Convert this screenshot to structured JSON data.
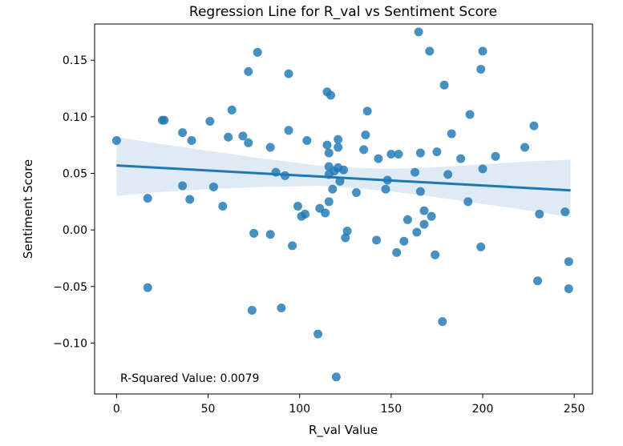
{
  "chart_data": {
    "type": "scatter",
    "title": "Regression Line for R_val vs Sentiment Score",
    "xlabel": "R_val Value",
    "ylabel": "Sentiment Score",
    "xlim": [
      -12,
      260
    ],
    "ylim": [
      -0.145,
      0.182
    ],
    "x_ticks": [
      0,
      50,
      100,
      150,
      200,
      250
    ],
    "y_ticks": [
      -0.1,
      -0.05,
      0.0,
      0.05,
      0.1,
      0.15
    ],
    "x_tick_labels": [
      "0",
      "50",
      "100",
      "150",
      "200",
      "250"
    ],
    "y_tick_labels": [
      "−0.10",
      "−0.05",
      "0.00",
      "0.05",
      "0.10",
      "0.15"
    ],
    "annotation": "R-Squared Value: 0.0079",
    "grid": false,
    "colors": {
      "points": "#1f77b4",
      "line": "#1f77b4",
      "band": "#1f77b4"
    },
    "points": [
      {
        "x": 0,
        "y": 0.079
      },
      {
        "x": 17,
        "y": 0.028
      },
      {
        "x": 17,
        "y": -0.051
      },
      {
        "x": 25,
        "y": 0.097
      },
      {
        "x": 26,
        "y": 0.097
      },
      {
        "x": 36,
        "y": 0.086
      },
      {
        "x": 36,
        "y": 0.039
      },
      {
        "x": 40,
        "y": 0.027
      },
      {
        "x": 41,
        "y": 0.079
      },
      {
        "x": 51,
        "y": 0.096
      },
      {
        "x": 53,
        "y": 0.038
      },
      {
        "x": 58,
        "y": 0.021
      },
      {
        "x": 61,
        "y": 0.082
      },
      {
        "x": 63,
        "y": 0.106
      },
      {
        "x": 69,
        "y": 0.083
      },
      {
        "x": 72,
        "y": 0.14
      },
      {
        "x": 72,
        "y": 0.077
      },
      {
        "x": 74,
        "y": -0.071
      },
      {
        "x": 75,
        "y": -0.003
      },
      {
        "x": 77,
        "y": 0.157
      },
      {
        "x": 84,
        "y": 0.073
      },
      {
        "x": 84,
        "y": -0.004
      },
      {
        "x": 87,
        "y": 0.051
      },
      {
        "x": 90,
        "y": -0.069
      },
      {
        "x": 92,
        "y": 0.048
      },
      {
        "x": 94,
        "y": 0.138
      },
      {
        "x": 94,
        "y": 0.088
      },
      {
        "x": 96,
        "y": -0.014
      },
      {
        "x": 99,
        "y": 0.021
      },
      {
        "x": 101,
        "y": 0.012
      },
      {
        "x": 103,
        "y": 0.014
      },
      {
        "x": 104,
        "y": 0.079
      },
      {
        "x": 110,
        "y": -0.092
      },
      {
        "x": 111,
        "y": 0.019
      },
      {
        "x": 114,
        "y": 0.015
      },
      {
        "x": 115,
        "y": 0.122
      },
      {
        "x": 115,
        "y": 0.075
      },
      {
        "x": 116,
        "y": 0.068
      },
      {
        "x": 116,
        "y": 0.056
      },
      {
        "x": 116,
        "y": 0.049
      },
      {
        "x": 116,
        "y": 0.025
      },
      {
        "x": 117,
        "y": 0.119
      },
      {
        "x": 118,
        "y": 0.036
      },
      {
        "x": 119,
        "y": 0.052
      },
      {
        "x": 120,
        "y": -0.13
      },
      {
        "x": 121,
        "y": 0.055
      },
      {
        "x": 121,
        "y": 0.073
      },
      {
        "x": 121,
        "y": 0.08
      },
      {
        "x": 122,
        "y": 0.043
      },
      {
        "x": 124,
        "y": 0.053
      },
      {
        "x": 125,
        "y": -0.007
      },
      {
        "x": 126,
        "y": -0.001
      },
      {
        "x": 131,
        "y": 0.033
      },
      {
        "x": 135,
        "y": 0.071
      },
      {
        "x": 136,
        "y": 0.084
      },
      {
        "x": 137,
        "y": 0.105
      },
      {
        "x": 142,
        "y": -0.009
      },
      {
        "x": 143,
        "y": 0.063
      },
      {
        "x": 147,
        "y": 0.036
      },
      {
        "x": 148,
        "y": 0.044
      },
      {
        "x": 150,
        "y": 0.067
      },
      {
        "x": 153,
        "y": -0.02
      },
      {
        "x": 154,
        "y": 0.067
      },
      {
        "x": 157,
        "y": -0.01
      },
      {
        "x": 159,
        "y": 0.009
      },
      {
        "x": 163,
        "y": 0.051
      },
      {
        "x": 164,
        "y": -0.002
      },
      {
        "x": 165,
        "y": 0.175
      },
      {
        "x": 166,
        "y": 0.068
      },
      {
        "x": 166,
        "y": 0.034
      },
      {
        "x": 168,
        "y": 0.005
      },
      {
        "x": 168,
        "y": 0.017
      },
      {
        "x": 171,
        "y": 0.158
      },
      {
        "x": 172,
        "y": 0.012
      },
      {
        "x": 174,
        "y": -0.022
      },
      {
        "x": 175,
        "y": 0.069
      },
      {
        "x": 178,
        "y": -0.081
      },
      {
        "x": 179,
        "y": 0.128
      },
      {
        "x": 181,
        "y": 0.049
      },
      {
        "x": 183,
        "y": 0.085
      },
      {
        "x": 188,
        "y": 0.063
      },
      {
        "x": 192,
        "y": 0.025
      },
      {
        "x": 193,
        "y": 0.102
      },
      {
        "x": 199,
        "y": 0.142
      },
      {
        "x": 199,
        "y": -0.015
      },
      {
        "x": 200,
        "y": 0.158
      },
      {
        "x": 200,
        "y": 0.054
      },
      {
        "x": 207,
        "y": 0.065
      },
      {
        "x": 223,
        "y": 0.073
      },
      {
        "x": 228,
        "y": 0.092
      },
      {
        "x": 230,
        "y": -0.045
      },
      {
        "x": 231,
        "y": 0.014
      },
      {
        "x": 245,
        "y": 0.016
      },
      {
        "x": 247,
        "y": -0.028
      },
      {
        "x": 247,
        "y": -0.052
      }
    ],
    "regression": {
      "x_start": 0,
      "y_start": 0.057,
      "x_end": 248,
      "y_end": 0.035
    },
    "confidence_band": {
      "x": [
        0,
        20,
        50,
        80,
        110,
        130,
        150,
        170,
        200,
        230,
        248
      ],
      "upper": [
        0.082,
        0.077,
        0.07,
        0.063,
        0.057,
        0.055,
        0.054,
        0.055,
        0.058,
        0.061,
        0.062
      ],
      "lower": [
        0.03,
        0.033,
        0.036,
        0.038,
        0.039,
        0.037,
        0.034,
        0.03,
        0.023,
        0.016,
        0.011
      ]
    }
  }
}
